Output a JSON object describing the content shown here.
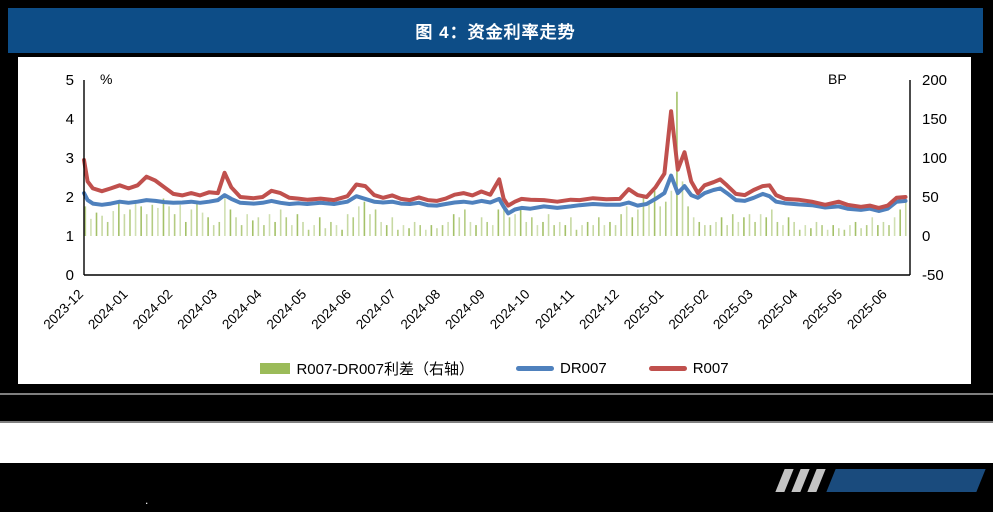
{
  "figure": {
    "title": "图 4：资金利率走势"
  },
  "chart_data": {
    "type": "line+bar",
    "title": "图 4：资金利率走势",
    "left_axis": {
      "label": "%",
      "min": 0,
      "max": 5,
      "ticks": [
        0,
        1,
        2,
        3,
        4,
        5
      ]
    },
    "right_axis": {
      "label": "BP",
      "min": -50,
      "max": 200,
      "ticks": [
        -50,
        0,
        50,
        100,
        150,
        200
      ]
    },
    "x_labels": [
      "2023-12",
      "2024-01",
      "2024-02",
      "2024-03",
      "2024-04",
      "2024-05",
      "2024-06",
      "2024-07",
      "2024-08",
      "2024-09",
      "2024-10",
      "2024-11",
      "2024-12",
      "2025-01",
      "2025-02",
      "2025-03",
      "2025-04",
      "2025-05",
      "2025-06"
    ],
    "x_domain_months": [
      0,
      18.5
    ],
    "grid": false,
    "legend_position": "bottom",
    "series": [
      {
        "name": "DR007",
        "color": "#4F81BD",
        "unit": "%",
        "points": [
          [
            0,
            2.1
          ],
          [
            0.08,
            1.92
          ],
          [
            0.2,
            1.83
          ],
          [
            0.4,
            1.8
          ],
          [
            0.6,
            1.83
          ],
          [
            0.8,
            1.88
          ],
          [
            1.0,
            1.85
          ],
          [
            1.2,
            1.88
          ],
          [
            1.4,
            1.92
          ],
          [
            1.6,
            1.9
          ],
          [
            1.8,
            1.87
          ],
          [
            2.0,
            1.85
          ],
          [
            2.2,
            1.86
          ],
          [
            2.4,
            1.88
          ],
          [
            2.6,
            1.85
          ],
          [
            2.8,
            1.88
          ],
          [
            3.0,
            1.92
          ],
          [
            3.15,
            2.05
          ],
          [
            3.3,
            1.95
          ],
          [
            3.5,
            1.85
          ],
          [
            3.8,
            1.83
          ],
          [
            4.0,
            1.85
          ],
          [
            4.2,
            1.9
          ],
          [
            4.4,
            1.85
          ],
          [
            4.6,
            1.82
          ],
          [
            4.8,
            1.84
          ],
          [
            5.0,
            1.82
          ],
          [
            5.3,
            1.85
          ],
          [
            5.6,
            1.82
          ],
          [
            5.9,
            1.88
          ],
          [
            6.1,
            2.02
          ],
          [
            6.3,
            1.95
          ],
          [
            6.5,
            1.88
          ],
          [
            6.7,
            1.86
          ],
          [
            6.9,
            1.88
          ],
          [
            7.1,
            1.83
          ],
          [
            7.3,
            1.82
          ],
          [
            7.5,
            1.85
          ],
          [
            7.7,
            1.79
          ],
          [
            7.9,
            1.78
          ],
          [
            8.1,
            1.82
          ],
          [
            8.3,
            1.86
          ],
          [
            8.5,
            1.88
          ],
          [
            8.7,
            1.85
          ],
          [
            8.9,
            1.9
          ],
          [
            9.1,
            1.86
          ],
          [
            9.3,
            1.95
          ],
          [
            9.4,
            1.75
          ],
          [
            9.5,
            1.58
          ],
          [
            9.65,
            1.68
          ],
          [
            9.8,
            1.72
          ],
          [
            10.0,
            1.7
          ],
          [
            10.3,
            1.76
          ],
          [
            10.6,
            1.72
          ],
          [
            10.9,
            1.76
          ],
          [
            11.1,
            1.79
          ],
          [
            11.4,
            1.82
          ],
          [
            11.7,
            1.8
          ],
          [
            12.0,
            1.8
          ],
          [
            12.2,
            1.86
          ],
          [
            12.4,
            1.78
          ],
          [
            12.6,
            1.82
          ],
          [
            12.8,
            1.95
          ],
          [
            13.0,
            2.1
          ],
          [
            13.15,
            2.55
          ],
          [
            13.3,
            2.1
          ],
          [
            13.45,
            2.28
          ],
          [
            13.6,
            2.05
          ],
          [
            13.75,
            1.98
          ],
          [
            13.9,
            2.1
          ],
          [
            14.1,
            2.18
          ],
          [
            14.25,
            2.22
          ],
          [
            14.4,
            2.1
          ],
          [
            14.6,
            1.92
          ],
          [
            14.8,
            1.9
          ],
          [
            15.0,
            1.98
          ],
          [
            15.2,
            2.08
          ],
          [
            15.35,
            2.02
          ],
          [
            15.5,
            1.88
          ],
          [
            15.7,
            1.84
          ],
          [
            16.0,
            1.81
          ],
          [
            16.3,
            1.79
          ],
          [
            16.6,
            1.73
          ],
          [
            16.9,
            1.76
          ],
          [
            17.1,
            1.7
          ],
          [
            17.4,
            1.67
          ],
          [
            17.6,
            1.7
          ],
          [
            17.8,
            1.64
          ],
          [
            18.0,
            1.7
          ],
          [
            18.2,
            1.88
          ],
          [
            18.4,
            1.9
          ]
        ]
      },
      {
        "name": "R007",
        "color": "#C0504D",
        "unit": "%",
        "points": [
          [
            0,
            2.95
          ],
          [
            0.08,
            2.4
          ],
          [
            0.2,
            2.22
          ],
          [
            0.4,
            2.15
          ],
          [
            0.6,
            2.22
          ],
          [
            0.8,
            2.3
          ],
          [
            1.0,
            2.22
          ],
          [
            1.2,
            2.3
          ],
          [
            1.4,
            2.52
          ],
          [
            1.6,
            2.42
          ],
          [
            1.8,
            2.25
          ],
          [
            2.0,
            2.08
          ],
          [
            2.2,
            2.04
          ],
          [
            2.4,
            2.1
          ],
          [
            2.6,
            2.04
          ],
          [
            2.8,
            2.12
          ],
          [
            3.0,
            2.1
          ],
          [
            3.15,
            2.62
          ],
          [
            3.3,
            2.25
          ],
          [
            3.5,
            2.0
          ],
          [
            3.8,
            1.97
          ],
          [
            4.0,
            2.0
          ],
          [
            4.2,
            2.16
          ],
          [
            4.4,
            2.1
          ],
          [
            4.6,
            1.98
          ],
          [
            4.8,
            1.96
          ],
          [
            5.0,
            1.93
          ],
          [
            5.3,
            1.96
          ],
          [
            5.6,
            1.92
          ],
          [
            5.9,
            2.02
          ],
          [
            6.1,
            2.32
          ],
          [
            6.3,
            2.28
          ],
          [
            6.5,
            2.05
          ],
          [
            6.7,
            1.98
          ],
          [
            6.9,
            2.04
          ],
          [
            7.1,
            1.95
          ],
          [
            7.3,
            1.92
          ],
          [
            7.5,
            1.99
          ],
          [
            7.7,
            1.92
          ],
          [
            7.9,
            1.9
          ],
          [
            8.1,
            1.96
          ],
          [
            8.3,
            2.06
          ],
          [
            8.5,
            2.1
          ],
          [
            8.7,
            2.04
          ],
          [
            8.9,
            2.14
          ],
          [
            9.1,
            2.06
          ],
          [
            9.3,
            2.45
          ],
          [
            9.4,
            1.95
          ],
          [
            9.5,
            1.78
          ],
          [
            9.65,
            1.88
          ],
          [
            9.8,
            1.95
          ],
          [
            10.0,
            1.93
          ],
          [
            10.3,
            1.92
          ],
          [
            10.6,
            1.88
          ],
          [
            10.9,
            1.93
          ],
          [
            11.1,
            1.92
          ],
          [
            11.4,
            1.97
          ],
          [
            11.7,
            1.94
          ],
          [
            12.0,
            1.95
          ],
          [
            12.2,
            2.2
          ],
          [
            12.4,
            2.05
          ],
          [
            12.6,
            2.0
          ],
          [
            12.8,
            2.25
          ],
          [
            13.0,
            2.6
          ],
          [
            13.15,
            4.2
          ],
          [
            13.3,
            2.7
          ],
          [
            13.45,
            3.15
          ],
          [
            13.6,
            2.4
          ],
          [
            13.75,
            2.1
          ],
          [
            13.9,
            2.3
          ],
          [
            14.1,
            2.38
          ],
          [
            14.25,
            2.45
          ],
          [
            14.4,
            2.3
          ],
          [
            14.6,
            2.08
          ],
          [
            14.8,
            2.05
          ],
          [
            15.0,
            2.18
          ],
          [
            15.2,
            2.28
          ],
          [
            15.35,
            2.3
          ],
          [
            15.5,
            2.05
          ],
          [
            15.7,
            1.95
          ],
          [
            16.0,
            1.93
          ],
          [
            16.3,
            1.88
          ],
          [
            16.6,
            1.8
          ],
          [
            16.9,
            1.88
          ],
          [
            17.1,
            1.8
          ],
          [
            17.4,
            1.75
          ],
          [
            17.6,
            1.78
          ],
          [
            17.8,
            1.72
          ],
          [
            18.0,
            1.78
          ],
          [
            18.2,
            1.98
          ],
          [
            18.4,
            2.0
          ]
        ]
      }
    ],
    "spread_bars": {
      "name": "R007-DR007利差（右轴）",
      "color": "#9BBB59",
      "axis": "right",
      "unit": "BP",
      "x_start": 0.03,
      "x_step": 0.125,
      "values_bp": [
        38,
        22,
        30,
        26,
        18,
        32,
        42,
        28,
        34,
        44,
        38,
        28,
        40,
        36,
        48,
        38,
        28,
        40,
        18,
        34,
        44,
        30,
        24,
        14,
        18,
        52,
        34,
        24,
        14,
        28,
        20,
        24,
        14,
        28,
        18,
        34,
        24,
        14,
        28,
        18,
        8,
        14,
        24,
        10,
        18,
        14,
        8,
        28,
        24,
        38,
        44,
        28,
        34,
        18,
        14,
        24,
        8,
        14,
        10,
        18,
        14,
        8,
        14,
        10,
        14,
        18,
        28,
        24,
        34,
        18,
        14,
        24,
        18,
        14,
        34,
        40,
        24,
        28,
        34,
        18,
        24,
        14,
        18,
        28,
        14,
        18,
        14,
        24,
        8,
        14,
        18,
        14,
        24,
        14,
        18,
        14,
        28,
        38,
        24,
        34,
        52,
        44,
        58,
        38,
        44,
        58,
        185,
        70,
        38,
        24,
        18,
        14,
        14,
        18,
        24,
        14,
        28,
        18,
        24,
        28,
        18,
        28,
        24,
        34,
        18,
        14,
        24,
        18,
        8,
        14,
        10,
        18,
        14,
        8,
        14,
        10,
        8,
        14,
        18,
        10,
        14,
        24,
        14,
        18,
        14,
        24,
        34,
        44
      ]
    },
    "legend": [
      {
        "label": "R007-DR007利差（右轴）",
        "color": "#9BBB59",
        "type": "bar"
      },
      {
        "label": "DR007",
        "color": "#4F81BD",
        "type": "line"
      },
      {
        "label": "R007",
        "color": "#C0504D",
        "type": "line"
      }
    ]
  },
  "footer": {
    "stray_dot": ".",
    "logo": {
      "slash_color": "#C3C3C3",
      "bar_color": "#1A4B7D"
    }
  },
  "colors": {
    "title_bar_bg": "#0D4D87",
    "page_bg": "#000000",
    "panel_bg": "#FFFFFF",
    "separator": "#7F7F7F"
  }
}
